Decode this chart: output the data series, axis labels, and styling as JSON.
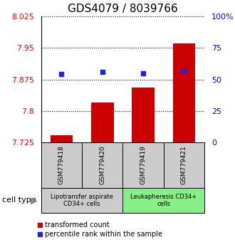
{
  "title": "GDS4079 / 8039766",
  "samples": [
    "GSM779418",
    "GSM779420",
    "GSM779419",
    "GSM779421"
  ],
  "bar_values": [
    7.742,
    7.82,
    7.855,
    7.96
  ],
  "bar_bottom": 7.725,
  "blue_values": [
    7.888,
    7.892,
    7.889,
    7.895
  ],
  "ylim_left": [
    7.725,
    8.025
  ],
  "ylim_right": [
    0,
    100
  ],
  "yticks_left": [
    7.725,
    7.8,
    7.875,
    7.95,
    8.025
  ],
  "ytick_labels_left": [
    "7.725",
    "7.8",
    "7.875",
    "7.95",
    "8.025"
  ],
  "yticks_right": [
    0,
    25,
    50,
    75,
    100
  ],
  "ytick_labels_right": [
    "0",
    "25",
    "50",
    "75",
    "100%"
  ],
  "bar_color": "#cc0000",
  "blue_color": "#2222dd",
  "bar_width": 0.55,
  "group1_samples": [
    0,
    1
  ],
  "group1_label": "Lipotransfer aspirate\nCD34+ cells",
  "group1_color": "#cccccc",
  "group2_samples": [
    2,
    3
  ],
  "group2_label": "Leukapheresis CD34+\ncells",
  "group2_color": "#88ee88",
  "cell_type_label": "cell type",
  "legend_red": "transformed count",
  "legend_blue": "percentile rank within the sample",
  "title_fontsize": 11,
  "tick_fontsize": 8,
  "annot_fontsize": 6.5
}
